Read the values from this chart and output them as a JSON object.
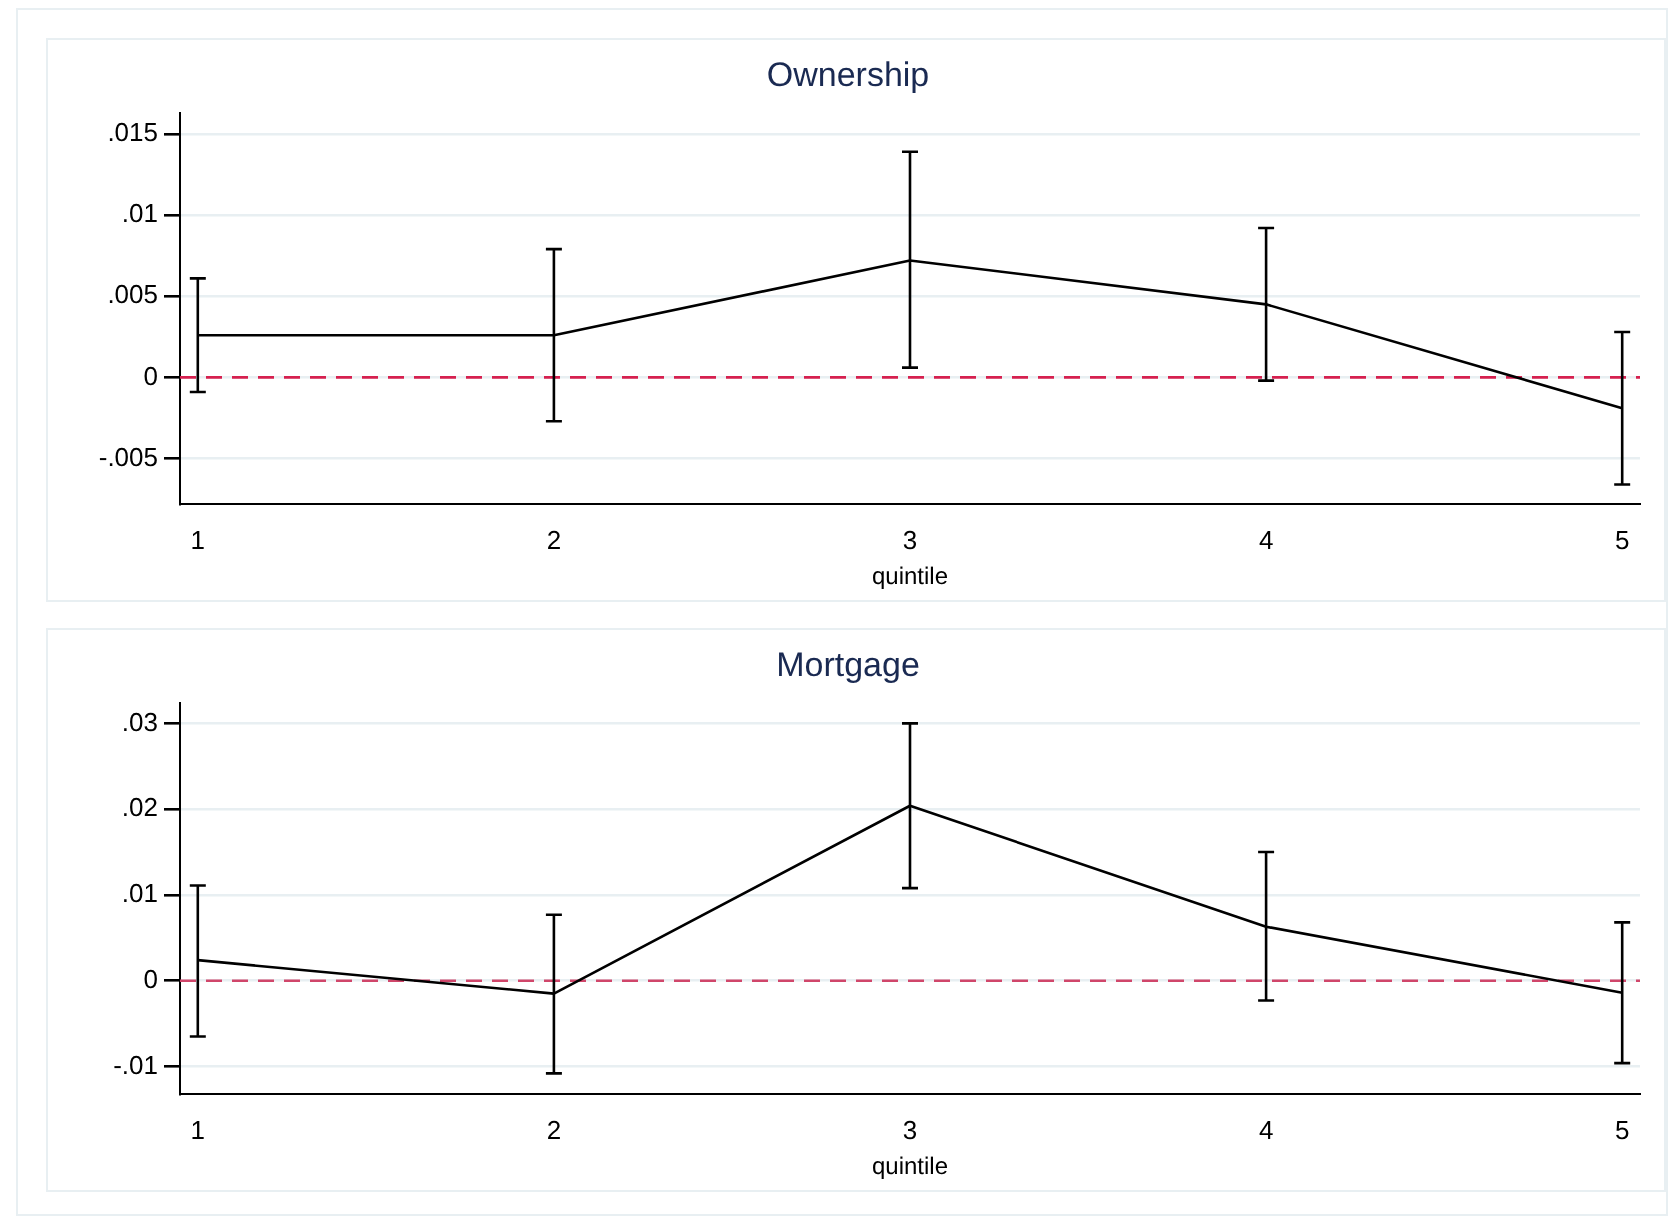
{
  "chart_data": [
    {
      "type": "line",
      "title": "Ownership",
      "xlabel": "quintile",
      "x": [
        1,
        2,
        3,
        4,
        5
      ],
      "series": [
        {
          "color": "#000000",
          "values": [
            0.0026,
            0.0026,
            0.0072,
            0.0045,
            -0.0019
          ],
          "errors": [
            [
              -0.0009,
              0.0061
            ],
            [
              -0.0027,
              0.0079
            ],
            [
              0.0006,
              0.0139
            ],
            [
              -0.0002,
              0.0092
            ],
            [
              -0.0066,
              0.0028
            ]
          ]
        }
      ],
      "xlim": [
        0.95,
        5.05
      ],
      "xticks": [
        1,
        2,
        3,
        4,
        5
      ],
      "ylim": [
        -0.0078,
        0.0163
      ],
      "yticks": [
        {
          "value": -0.005,
          "label": "-.005"
        },
        {
          "value": 0,
          "label": "0"
        },
        {
          "value": 0.005,
          "label": ".005"
        },
        {
          "value": 0.01,
          "label": ".01"
        },
        {
          "value": 0.015,
          "label": ".015"
        }
      ],
      "ref_lines": [
        {
          "axis": "y",
          "value": 0,
          "color": "#d6204f",
          "line_style": "dashed"
        }
      ],
      "grid": "y",
      "legend": false,
      "marker": "none"
    },
    {
      "type": "line",
      "title": "Mortgage",
      "xlabel": "quintile",
      "x": [
        1,
        2,
        3,
        4,
        5
      ],
      "series": [
        {
          "color": "#000000",
          "values": [
            0.0024,
            -0.0015,
            0.0204,
            0.0063,
            -0.0014
          ],
          "errors": [
            [
              -0.0065,
              0.0111
            ],
            [
              -0.0108,
              0.0077
            ],
            [
              0.0108,
              0.03
            ],
            [
              -0.0023,
              0.015
            ],
            [
              -0.0096,
              0.0068
            ]
          ]
        }
      ],
      "xlim": [
        0.95,
        5.05
      ],
      "xticks": [
        1,
        2,
        3,
        4,
        5
      ],
      "ylim": [
        -0.0132,
        0.0324
      ],
      "yticks": [
        {
          "value": -0.01,
          "label": "-.01"
        },
        {
          "value": 0,
          "label": "0"
        },
        {
          "value": 0.01,
          "label": ".01"
        },
        {
          "value": 0.02,
          "label": ".02"
        },
        {
          "value": 0.03,
          "label": ".03"
        }
      ],
      "ref_lines": [
        {
          "axis": "y",
          "value": 0,
          "color": "#d0466a",
          "line_style": "dashed"
        }
      ],
      "grid": "y",
      "legend": false,
      "marker": "none"
    }
  ]
}
